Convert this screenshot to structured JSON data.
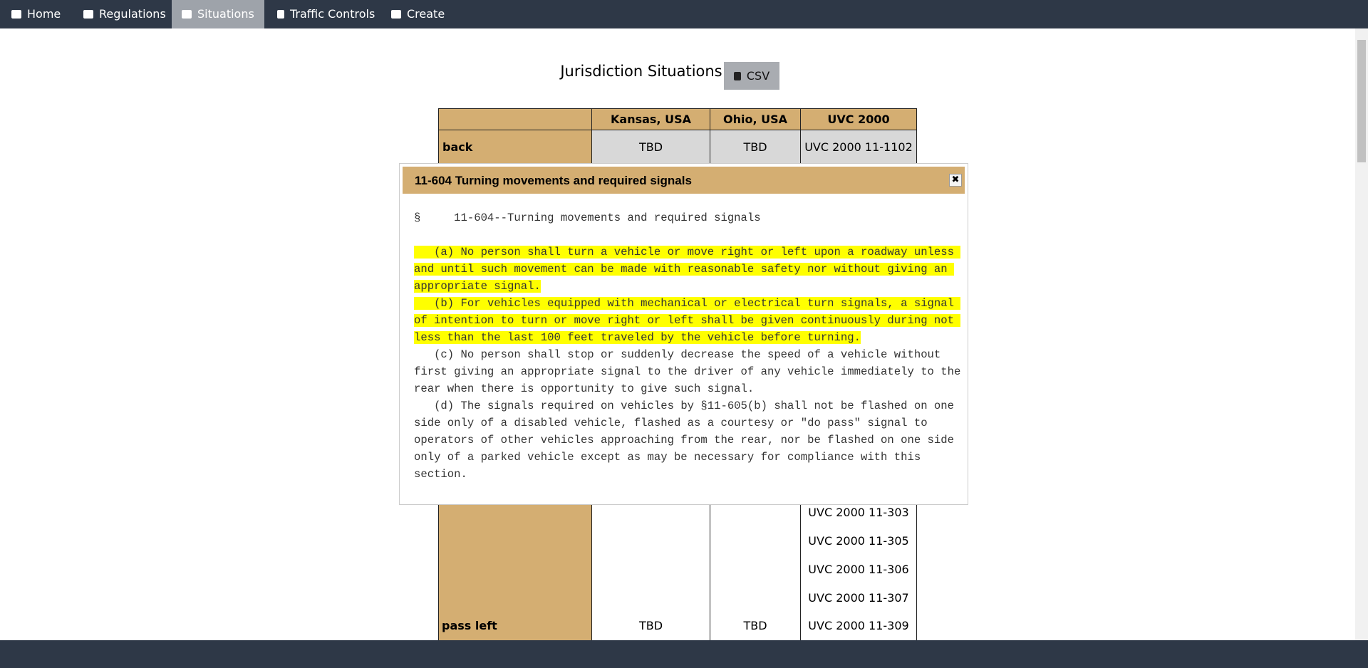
{
  "nav": [
    "Home",
    "Regulations",
    "Situations",
    "Traffic Controls",
    "Create"
  ],
  "page": {
    "title": "Jurisdiction Situations",
    "csv_button": "CSV"
  },
  "table": {
    "headers": [
      "Kansas, USA",
      "Ohio, USA",
      "UVC 2000"
    ],
    "rows": [
      {
        "label": "back",
        "cells": [
          "TBD",
          "TBD",
          "UVC 2000 11-1102"
        ]
      },
      {
        "label": "pass left",
        "cells": [
          "TBD",
          "TBD"
        ],
        "uvc": [
          "UVC 2000 11-303",
          "UVC 2000 11-305",
          "UVC 2000 11-306",
          "UVC 2000 11-307",
          "UVC 2000 11-309"
        ]
      }
    ]
  },
  "modal": {
    "title": "11-604 Turning movements and required signals",
    "heading": "§     11-604--Turning movements and required signals",
    "paragraphs": [
      "   (a) No person shall turn a vehicle or move right or left upon a roadway unless and until such movement can be made with reasonable safety nor without giving an appropriate signal.",
      "   (b) For vehicles equipped with mechanical or electrical turn signals, a signal of intention to turn or move right or left shall be given continuously during not less than the last 100 feet traveled by the vehicle before turning.",
      "   (c) No person shall stop or suddenly decrease the speed of a vehicle without first giving an appropriate signal to the driver of any vehicle immediately to the rear when there is opportunity to give such signal.",
      "   (d) The signals required on vehicles by §11-605(b) shall not be flashed on one side only of a disabled vehicle, flashed as a courtesy or \"do pass\" signal to operators of other vehicles approaching from the rear, nor be flashed on one side only of a parked vehicle except as may be necessary for compliance with this section."
    ],
    "highlighted": [
      true,
      true,
      false,
      false
    ]
  }
}
